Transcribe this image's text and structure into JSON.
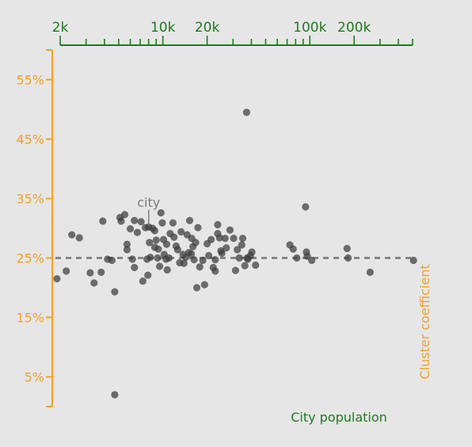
{
  "colors": {
    "background": "#e6e6e6",
    "x_axis": "#1f7a1f",
    "y_axis": "#f2a02a",
    "points": "#3c3c3c",
    "reference_line": "#777777",
    "annotation": "#7a7a7a"
  },
  "chart_data": {
    "type": "scatter",
    "title": "",
    "xlabel": "City population",
    "ylabel": "Cluster coefficient",
    "x_scale": "log",
    "xlim": [
      2000,
      500000
    ],
    "ylim": [
      0,
      60
    ],
    "x_axis_position": "top",
    "y_axis_position": "left",
    "grid": false,
    "legend": "none",
    "x_tick_labels": [
      {
        "value": 2000,
        "label": "2k"
      },
      {
        "value": 10000,
        "label": "10k"
      },
      {
        "value": 20000,
        "label": "20k"
      },
      {
        "value": 100000,
        "label": "100k"
      },
      {
        "value": 200000,
        "label": "200k"
      }
    ],
    "x_minor_ticks": [
      2000,
      3000,
      4000,
      5000,
      6000,
      7000,
      8000,
      9000,
      10000,
      20000,
      30000,
      40000,
      50000,
      60000,
      70000,
      80000,
      90000,
      100000,
      200000,
      300000,
      400000,
      500000
    ],
    "y_ticks": [
      {
        "value": 5,
        "label": "5%"
      },
      {
        "value": 15,
        "label": "15%"
      },
      {
        "value": 25,
        "label": "25%"
      },
      {
        "value": 35,
        "label": "35%"
      },
      {
        "value": 45,
        "label": "45%"
      },
      {
        "value": 55,
        "label": "55%"
      }
    ],
    "reference_line": {
      "y": 25,
      "style": "dashed"
    },
    "annotation": {
      "text": "city",
      "x": 8000,
      "y": 29.9
    },
    "points": [
      [
        1900,
        21.5
      ],
      [
        2200,
        22.8
      ],
      [
        2400,
        28.9
      ],
      [
        2700,
        28.4
      ],
      [
        3200,
        22.5
      ],
      [
        3400,
        20.8
      ],
      [
        3800,
        22.6
      ],
      [
        3900,
        31.2
      ],
      [
        4200,
        24.8
      ],
      [
        4500,
        24.6
      ],
      [
        4700,
        2.0
      ],
      [
        4700,
        19.3
      ],
      [
        5100,
        31.8
      ],
      [
        5200,
        31.2
      ],
      [
        5500,
        32.3
      ],
      [
        5700,
        27.3
      ],
      [
        5700,
        26.4
      ],
      [
        6000,
        29.9
      ],
      [
        6200,
        24.8
      ],
      [
        6400,
        31.3
      ],
      [
        6400,
        23.4
      ],
      [
        6700,
        29.3
      ],
      [
        7100,
        31.1
      ],
      [
        7300,
        21.1
      ],
      [
        7600,
        30.1
      ],
      [
        7800,
        24.8
      ],
      [
        7900,
        22.1
      ],
      [
        8000,
        30.2
      ],
      [
        8100,
        27.6
      ],
      [
        8200,
        25.1
      ],
      [
        8500,
        30.0
      ],
      [
        8800,
        29.6
      ],
      [
        8800,
        26.8
      ],
      [
        9000,
        28.0
      ],
      [
        9200,
        25.0
      ],
      [
        9300,
        26.5
      ],
      [
        9500,
        23.6
      ],
      [
        9700,
        32.6
      ],
      [
        9900,
        30.9
      ],
      [
        10100,
        28.1
      ],
      [
        10200,
        25.6
      ],
      [
        10500,
        24.8
      ],
      [
        10700,
        23.0
      ],
      [
        10600,
        27.3
      ],
      [
        11000,
        25.0
      ],
      [
        11200,
        29.1
      ],
      [
        11700,
        30.9
      ],
      [
        11900,
        28.5
      ],
      [
        12300,
        27.0
      ],
      [
        12600,
        26.4
      ],
      [
        13000,
        24.2
      ],
      [
        13300,
        29.4
      ],
      [
        13700,
        25.6
      ],
      [
        13900,
        24.1
      ],
      [
        14300,
        25.1
      ],
      [
        14600,
        28.9
      ],
      [
        15000,
        25.9
      ],
      [
        15200,
        31.3
      ],
      [
        15600,
        25.7
      ],
      [
        15700,
        28.3
      ],
      [
        16000,
        26.9
      ],
      [
        16300,
        24.7
      ],
      [
        16700,
        27.6
      ],
      [
        17000,
        20.0
      ],
      [
        17300,
        30.1
      ],
      [
        17800,
        23.5
      ],
      [
        18700,
        24.6
      ],
      [
        19200,
        20.5
      ],
      [
        20000,
        27.4
      ],
      [
        20500,
        25.4
      ],
      [
        21300,
        28.1
      ],
      [
        22000,
        23.4
      ],
      [
        22700,
        24.7
      ],
      [
        22700,
        22.8
      ],
      [
        23600,
        30.6
      ],
      [
        23600,
        29.1
      ],
      [
        24300,
        28.4
      ],
      [
        24800,
        26.2
      ],
      [
        25200,
        25.8
      ],
      [
        26500,
        28.3
      ],
      [
        27000,
        26.7
      ],
      [
        28600,
        29.7
      ],
      [
        30300,
        28.3
      ],
      [
        31200,
        22.9
      ],
      [
        32100,
        26.4
      ],
      [
        33100,
        25.0
      ],
      [
        34400,
        27.2
      ],
      [
        34900,
        28.3
      ],
      [
        36100,
        23.7
      ],
      [
        37100,
        49.5
      ],
      [
        37400,
        25.0
      ],
      [
        37900,
        24.8
      ],
      [
        39400,
        25.4
      ],
      [
        40300,
        26.0
      ],
      [
        42700,
        23.8
      ],
      [
        73100,
        27.2
      ],
      [
        77000,
        26.5
      ],
      [
        81500,
        25.0
      ],
      [
        93500,
        33.6
      ],
      [
        94700,
        26.0
      ],
      [
        96000,
        25.3
      ],
      [
        103000,
        24.6
      ],
      [
        179000,
        26.6
      ],
      [
        182000,
        25.0
      ],
      [
        257000,
        22.6
      ],
      [
        507000,
        24.6
      ]
    ]
  }
}
